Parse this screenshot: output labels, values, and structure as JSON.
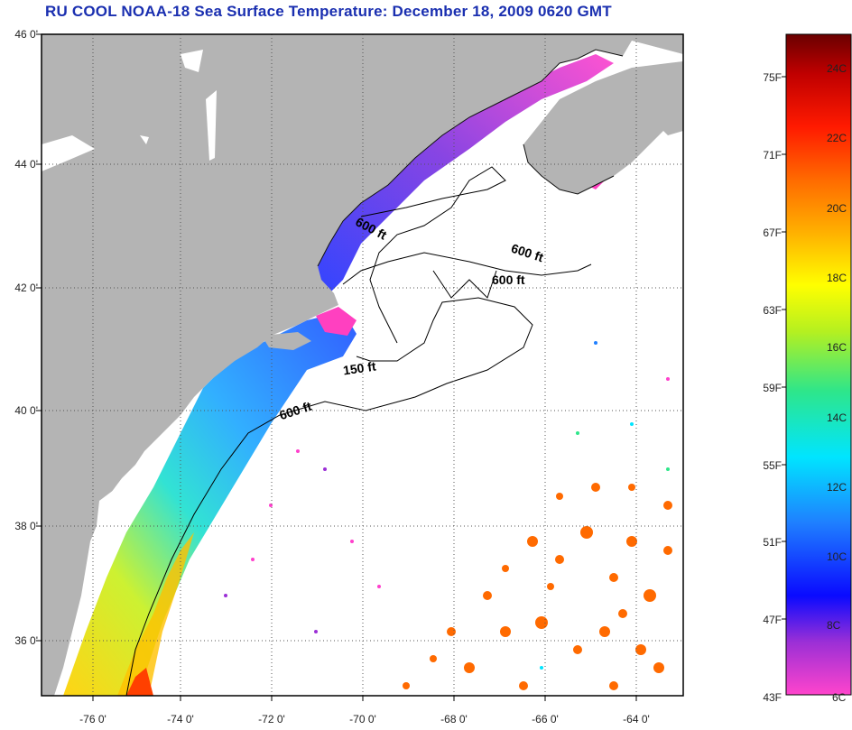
{
  "title": "RU COOL  NOAA-18  Sea Surface Temperature:  December 18, 2009 0620 GMT",
  "map": {
    "lat_ticks": [
      "46 0'",
      "44 0'",
      "42 0'",
      "40 0'",
      "38 0'",
      "36 0'"
    ],
    "lon_ticks": [
      "-76 0'",
      "-74 0'",
      "-72 0'",
      "-70 0'",
      "-68 0'",
      "-66 0'",
      "-64 0'"
    ],
    "contour_labels": [
      "600 ft",
      "600 ft",
      "600 ft",
      "150 ft",
      "600 ft"
    ],
    "colors": {
      "land": "#b4b4b4",
      "frame": "#000000",
      "grid": "#555555"
    }
  },
  "colorbar": {
    "fahrenheit": [
      "75F",
      "71F",
      "67F",
      "63F",
      "59F",
      "55F",
      "51F",
      "47F",
      "43F"
    ],
    "celsius": [
      "24C",
      "22C",
      "20C",
      "18C",
      "16C",
      "14C",
      "12C",
      "10C",
      "8C",
      "6C"
    ],
    "gradient": [
      "#ff44cc",
      "#9b2fd6",
      "#0a0aff",
      "#1f7fff",
      "#00e5ff",
      "#2ee68a",
      "#b5f020",
      "#ffff00",
      "#ffb000",
      "#ff6a00",
      "#ff1a00",
      "#c00000",
      "#6a0000"
    ]
  }
}
